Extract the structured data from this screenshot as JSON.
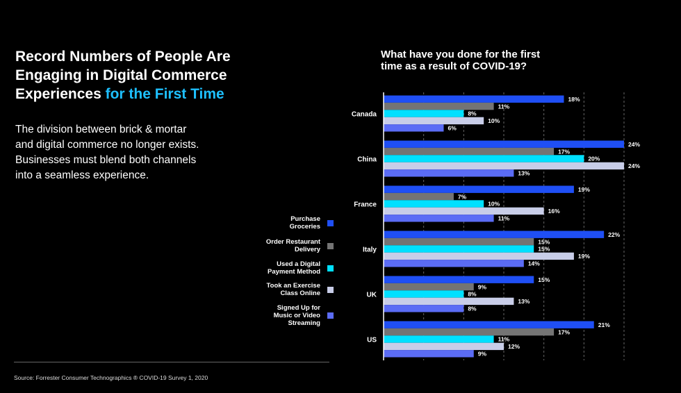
{
  "headline": {
    "line1": "Record Numbers of People Are",
    "line2": "Engaging in Digital Commerce",
    "line3_plain": "Experiences ",
    "line3_accent": "for the First Time"
  },
  "body": {
    "line1": "The division between brick & mortar",
    "line2": "and digital commerce no longer exists.",
    "line3": "Businesses must blend both channels",
    "line4": "into a seamless experience."
  },
  "legend": [
    {
      "line1": "Purchase",
      "line2": "Groceries",
      "line3": "",
      "color": "#1f4ff5"
    },
    {
      "line1": "Order Restaurant",
      "line2": "Delivery",
      "line3": "",
      "color": "#747474"
    },
    {
      "line1": "Used a Digital",
      "line2": "Payment Method",
      "line3": "",
      "color": "#00e0ff"
    },
    {
      "line1": "Took an Exercise",
      "line2": "Class Online",
      "line3": "",
      "color": "#c8cde8"
    },
    {
      "line1": "Signed Up for",
      "line2": "Music or Video",
      "line3": "Streaming",
      "color": "#5b6cf5"
    }
  ],
  "source": "Source: Forrester Consumer Technographics ®  COVID-19 Survey 1, 2020",
  "chart_data": {
    "type": "bar",
    "orientation": "horizontal",
    "title_line1": "What have you done for the first",
    "title_line2": "time as a result of COVID-19?",
    "categories": [
      "Canada",
      "China",
      "France",
      "Italy",
      "UK",
      "US"
    ],
    "xlim": [
      0,
      24
    ],
    "grid": true,
    "legend_position": "left",
    "series": [
      {
        "name": "Purchase Groceries",
        "color": "#1f4ff5",
        "values": [
          18,
          24,
          19,
          22,
          15,
          21
        ]
      },
      {
        "name": "Order Restaurant Delivery",
        "color": "#747474",
        "values": [
          11,
          17,
          7,
          15,
          9,
          17
        ]
      },
      {
        "name": "Used a Digital Payment Method",
        "color": "#00e0ff",
        "values": [
          8,
          20,
          10,
          15,
          8,
          11
        ]
      },
      {
        "name": "Took an Exercise Class Online",
        "color": "#c8cde8",
        "values": [
          10,
          24,
          16,
          19,
          13,
          12
        ]
      },
      {
        "name": "Signed Up for Music or Video Streaming",
        "color": "#5b6cf5",
        "values": [
          6,
          13,
          11,
          14,
          8,
          9
        ]
      }
    ],
    "value_suffix": "%"
  }
}
